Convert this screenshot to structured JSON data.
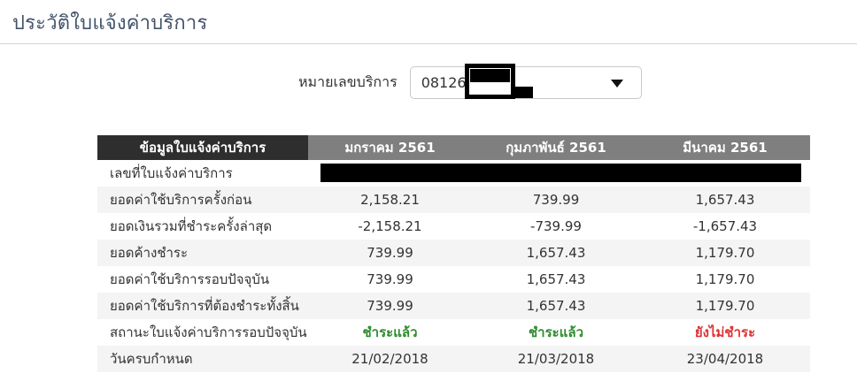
{
  "page": {
    "title": "ประวัติใบแจ้งค่าบริการ"
  },
  "filter": {
    "label": "หมายเลขบริการ",
    "selected_value": "0812662",
    "value_partially_redacted": true,
    "dropdown_icon": "caret-down-icon"
  },
  "table": {
    "headers": [
      "ข้อมูลใบแจ้งค่าบริการ",
      "มกราคม 2561",
      "กุมภาพันธ์ 2561",
      "มีนาคม 2561"
    ],
    "rows": [
      {
        "label": "เลขที่ใบแจ้งค่าบริการ",
        "values": [
          "",
          "",
          ""
        ],
        "redacted": true
      },
      {
        "label": "ยอดค่าใช้บริการครั้งก่อน",
        "values": [
          "2,158.21",
          "739.99",
          "1,657.43"
        ]
      },
      {
        "label": "ยอดเงินรวมที่ชำระครั้งล่าสุด",
        "values": [
          "-2,158.21",
          "-739.99",
          "-1,657.43"
        ]
      },
      {
        "label": "ยอดค้างชำระ",
        "values": [
          "739.99",
          "1,657.43",
          "1,179.70"
        ]
      },
      {
        "label": "ยอดค่าใช้บริการรอบปัจจุบัน",
        "values": [
          "739.99",
          "1,657.43",
          "1,179.70"
        ]
      },
      {
        "label": "ยอดค่าใช้บริการที่ต้องชำระทั้งสิ้น",
        "values": [
          "739.99",
          "1,657.43",
          "1,179.70"
        ]
      },
      {
        "label": "สถานะใบแจ้งค่าบริการรอบปัจจุบัน",
        "values": [
          "ชำระแล้ว",
          "ชำระแล้ว",
          "ยังไม่ชำระ"
        ],
        "statuses": [
          "paid",
          "paid",
          "unpaid"
        ]
      },
      {
        "label": "วันครบกำหนด",
        "values": [
          "21/02/2018",
          "21/03/2018",
          "23/04/2018"
        ]
      }
    ]
  },
  "colors": {
    "title": "#44546a",
    "header_dark_bg": "#2e2e2e",
    "header_gray_bg": "#7f7f7f",
    "row_alt_bg": "#f4f4f4",
    "status_paid": "#2e8b2e",
    "status_unpaid": "#dd3333"
  }
}
